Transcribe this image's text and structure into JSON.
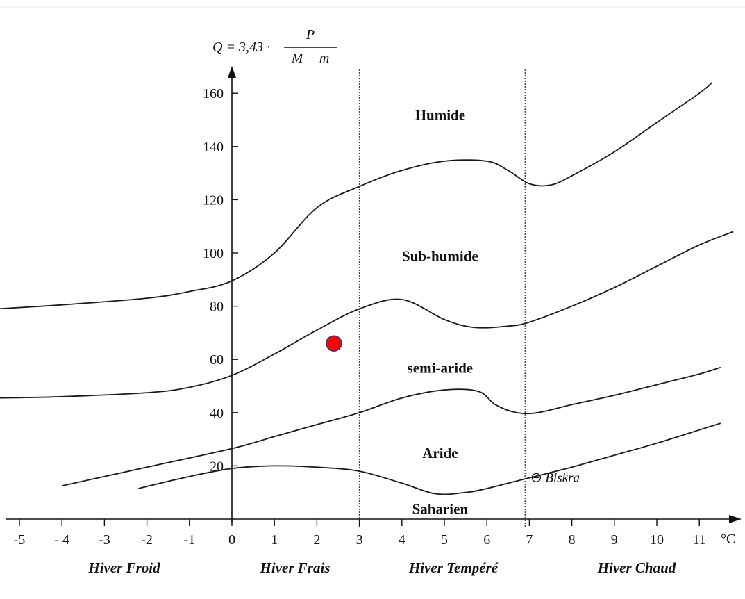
{
  "chart_data": {
    "type": "line",
    "title": "",
    "formula": {
      "lhs": "Q = 3,43 ·",
      "numerator": "P",
      "denominator": "M − m"
    },
    "xlabel": "°C",
    "ylabel": "",
    "xlim": [
      -5.5,
      11.7
    ],
    "ylim": [
      0,
      168
    ],
    "x_ticks": [
      -5,
      -4,
      -3,
      -2,
      -1,
      0,
      1,
      2,
      3,
      4,
      5,
      6,
      7,
      8,
      9,
      10,
      11
    ],
    "x_tick_labels": [
      "-5",
      "- 4",
      "-3",
      "-2",
      "-1",
      "0",
      "1",
      "2",
      "3",
      "4",
      "5",
      "6",
      "7",
      "8",
      "9",
      "10",
      "11"
    ],
    "y_ticks": [
      20,
      40,
      60,
      80,
      100,
      120,
      140,
      160
    ],
    "y_tick_labels": [
      "20",
      "40",
      "60",
      "80",
      "100",
      "120",
      "140",
      "160"
    ],
    "separators_x": [
      3,
      6.9
    ],
    "zones": [
      {
        "label": "Humide",
        "x": 4.9,
        "y": 150
      },
      {
        "label": "Sub-humide",
        "x": 4.9,
        "y": 97
      },
      {
        "label": "semi-aride",
        "x": 4.9,
        "y": 55
      },
      {
        "label": "Aride",
        "x": 4.9,
        "y": 23
      },
      {
        "label": "Saharien",
        "x": 4.9,
        "y": 2
      }
    ],
    "seasons": [
      "Hiver Froid",
      "Hiver Frais",
      "Hiver Tempéré",
      "Hiver Chaud"
    ],
    "series": [
      {
        "values": [
          [
            -5.5,
            79
          ],
          [
            -4,
            80.5
          ],
          [
            -2,
            83
          ],
          [
            -1,
            85.5
          ],
          [
            0,
            89.5
          ],
          [
            1,
            100
          ],
          [
            2,
            117
          ],
          [
            3,
            125
          ],
          [
            4,
            131
          ],
          [
            5,
            134.5
          ],
          [
            6,
            134.5
          ],
          [
            6.5,
            131
          ],
          [
            7,
            126
          ],
          [
            7.5,
            125.5
          ],
          [
            8,
            129
          ],
          [
            9,
            138
          ],
          [
            10,
            149
          ],
          [
            11,
            160
          ],
          [
            11.3,
            164
          ]
        ]
      },
      {
        "values": [
          [
            -5.5,
            45.5
          ],
          [
            -4,
            46
          ],
          [
            -2,
            47.5
          ],
          [
            -1,
            49.5
          ],
          [
            0,
            54
          ],
          [
            1,
            62
          ],
          [
            2,
            71
          ],
          [
            3,
            79
          ],
          [
            4,
            82.5
          ],
          [
            5,
            75
          ],
          [
            5.7,
            72
          ],
          [
            6.5,
            72.5
          ],
          [
            7,
            74
          ],
          [
            8,
            80
          ],
          [
            9,
            87
          ],
          [
            10,
            95
          ],
          [
            11,
            103
          ],
          [
            11.8,
            108
          ]
        ]
      },
      {
        "values": [
          [
            -4,
            12.5
          ],
          [
            -2,
            19.5
          ],
          [
            0,
            26.5
          ],
          [
            1,
            31
          ],
          [
            2,
            35.5
          ],
          [
            3,
            40
          ],
          [
            4,
            45.5
          ],
          [
            5,
            48.5
          ],
          [
            5.8,
            48
          ],
          [
            6.2,
            43
          ],
          [
            6.7,
            40
          ],
          [
            7.2,
            40
          ],
          [
            8,
            43
          ],
          [
            9,
            46.5
          ],
          [
            10,
            50.5
          ],
          [
            11,
            54.5
          ],
          [
            11.5,
            57
          ]
        ]
      },
      {
        "values": [
          [
            -2.2,
            11.5
          ],
          [
            -1,
            16
          ],
          [
            0,
            19
          ],
          [
            1,
            20
          ],
          [
            2,
            19.5
          ],
          [
            3,
            18
          ],
          [
            4,
            13.5
          ],
          [
            4.8,
            9.5
          ],
          [
            5.5,
            10
          ],
          [
            6,
            11.5
          ],
          [
            7,
            15.5
          ],
          [
            8,
            19.5
          ],
          [
            9,
            24
          ],
          [
            10,
            28.5
          ],
          [
            11,
            33.5
          ],
          [
            11.5,
            36
          ]
        ]
      }
    ],
    "points": [
      {
        "x": 2.4,
        "y": 66,
        "color": "#ff0000",
        "stroke": "#2a3f8f"
      }
    ],
    "stations": [
      {
        "label": "Biskra",
        "marker": "circle-dash-icon",
        "x": 7,
        "y": 14
      }
    ]
  }
}
